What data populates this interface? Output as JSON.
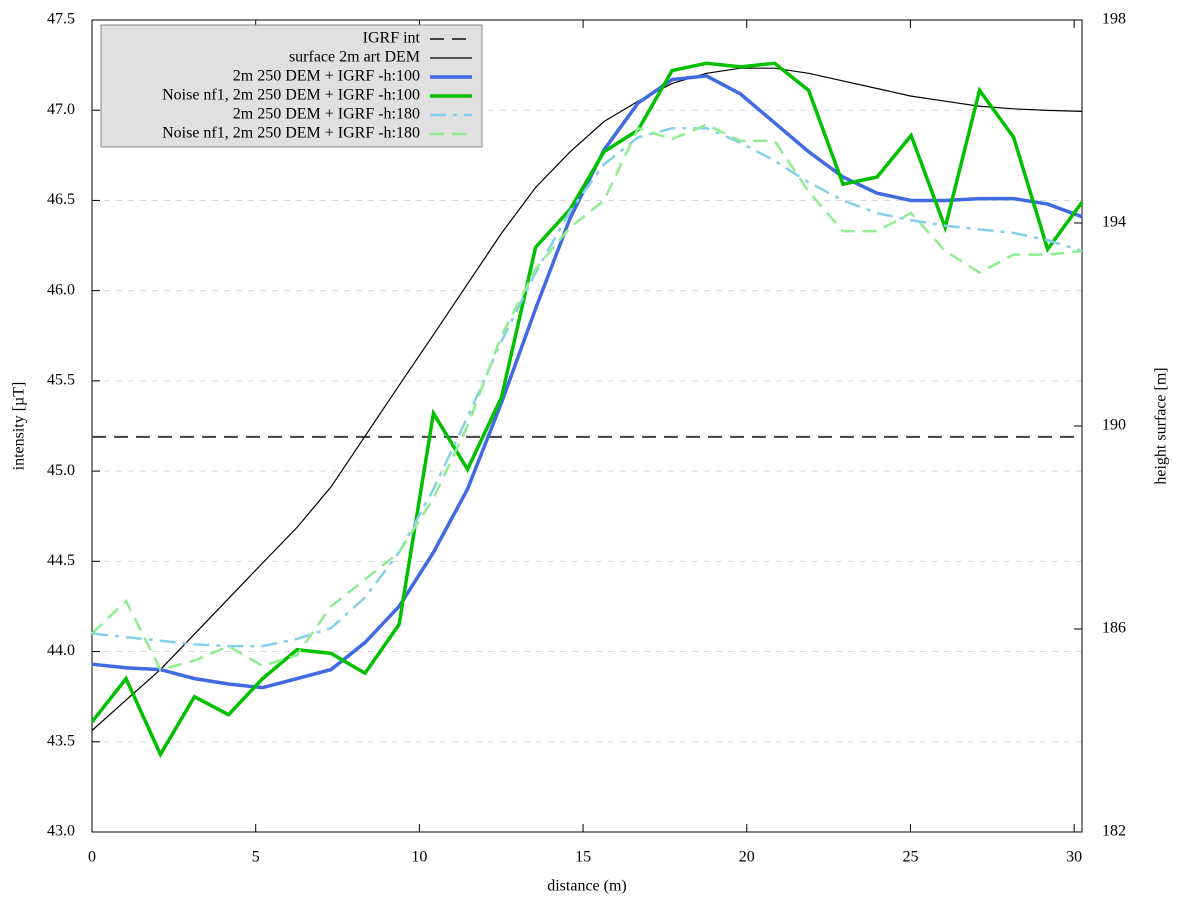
{
  "chart_data": {
    "type": "line",
    "xlabel": "distance (m)",
    "ylabel": "intensity [µT]",
    "y2label": "height surface [m]",
    "xlim": [
      0,
      30.24
    ],
    "xticks": [
      0,
      5,
      10,
      15,
      20,
      25,
      30
    ],
    "ylim": [
      43,
      47.5
    ],
    "yticks": [
      {
        "value": 43,
        "label": "43.0"
      },
      43.5,
      {
        "value": 44,
        "label": "44.0"
      },
      44.5,
      {
        "value": 45,
        "label": "45.0"
      },
      45.5,
      {
        "value": 46,
        "label": "46.0"
      },
      46.5,
      {
        "value": 47,
        "label": "47.0"
      },
      47.5
    ],
    "y2lim": [
      182,
      198
    ],
    "y2ticks": [
      182,
      186,
      190,
      194,
      198
    ],
    "grid": true,
    "legend": "upper-left",
    "x": [
      0,
      1.04,
      2.09,
      3.13,
      4.17,
      5.21,
      6.26,
      7.3,
      8.34,
      9.38,
      10.43,
      11.47,
      12.51,
      13.55,
      14.6,
      15.64,
      16.68,
      17.72,
      18.77,
      19.81,
      20.85,
      21.89,
      22.94,
      23.98,
      25.02,
      26.06,
      27.11,
      28.15,
      29.19,
      30.24
    ],
    "series": [
      {
        "name": "IGRF int",
        "color": "#404040",
        "dash": "dashed",
        "line_width": 2,
        "x": [
          0,
          30.24
        ],
        "values": [
          45.19,
          45.19
        ]
      },
      {
        "name": "surface 2m art DEM",
        "color": "#000000",
        "dash": "solid",
        "line_width": 1.2,
        "axis": "y2",
        "values": [
          184.0,
          184.6,
          185.2,
          185.9,
          186.6,
          187.3,
          188.0,
          188.8,
          189.8,
          190.8,
          191.8,
          192.8,
          193.8,
          194.7,
          195.4,
          196.0,
          196.4,
          196.75,
          196.95,
          197.05,
          197.05,
          196.95,
          196.8,
          196.65,
          196.5,
          196.4,
          196.3,
          196.25,
          196.22,
          196.2
        ]
      },
      {
        "name": "2m 250 DEM + IGRF -h:100",
        "color": "#4169e1",
        "dash": "solid",
        "line_width": 3.5,
        "values": [
          43.93,
          43.91,
          43.9,
          43.85,
          43.82,
          43.8,
          43.85,
          43.9,
          44.05,
          44.25,
          44.55,
          44.9,
          45.38,
          45.9,
          46.4,
          46.78,
          47.04,
          47.17,
          47.19,
          47.09,
          46.93,
          46.77,
          46.63,
          46.54,
          46.5,
          46.5,
          46.51,
          46.51,
          46.48,
          46.41
        ]
      },
      {
        "name": "Noise nf1, 2m 250 DEM + IGRF -h:100",
        "color": "#00c000",
        "dash": "solid",
        "line_width": 3.5,
        "values": [
          43.61,
          43.85,
          43.43,
          43.75,
          43.65,
          43.85,
          44.01,
          43.99,
          43.88,
          44.15,
          45.32,
          45.01,
          45.41,
          46.24,
          46.45,
          46.77,
          46.89,
          47.22,
          47.26,
          47.24,
          47.26,
          47.11,
          46.59,
          46.63,
          46.86,
          46.35,
          47.11,
          46.85,
          46.23,
          46.49
        ]
      },
      {
        "name": "2m 250 DEM + IGRF -h:180",
        "color": "#87ceeb",
        "dash": "dash-dot",
        "line_width": 2.5,
        "values": [
          44.1,
          44.08,
          44.06,
          44.04,
          44.03,
          44.03,
          44.07,
          44.13,
          44.3,
          44.55,
          44.9,
          45.3,
          45.72,
          46.1,
          46.44,
          46.7,
          46.85,
          46.9,
          46.9,
          46.82,
          46.72,
          46.6,
          46.5,
          46.43,
          46.39,
          46.36,
          46.34,
          46.32,
          46.28,
          46.22
        ]
      },
      {
        "name": "Noise nf1, 2m 250 DEM + IGRF -h:180",
        "color": "#90ee90",
        "dash": "dashed",
        "line_width": 2.5,
        "values": [
          44.1,
          44.28,
          43.9,
          43.95,
          44.03,
          43.92,
          43.98,
          44.25,
          44.4,
          44.55,
          44.85,
          45.25,
          45.75,
          46.12,
          46.35,
          46.5,
          46.9,
          46.84,
          46.92,
          46.83,
          46.83,
          46.55,
          46.33,
          46.33,
          46.43,
          46.22,
          46.1,
          46.2,
          46.2,
          46.22
        ]
      }
    ]
  }
}
